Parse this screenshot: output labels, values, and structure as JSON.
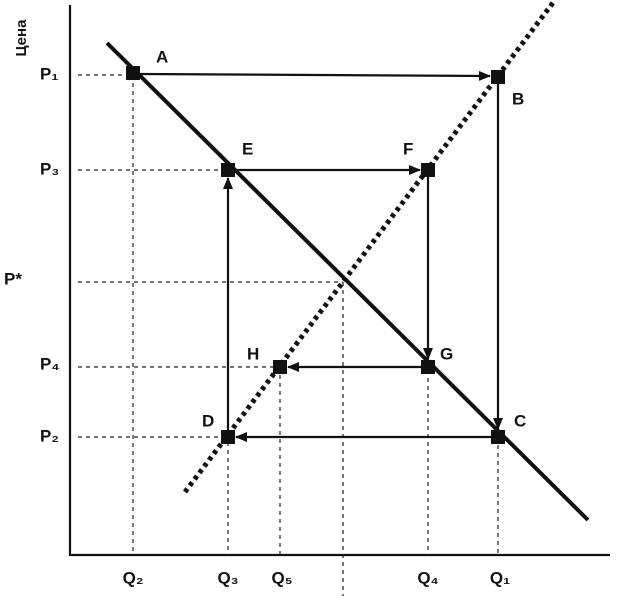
{
  "axis_label": "Цена",
  "price_labels": [
    "P₁",
    "P₃",
    "P*",
    "P₄",
    "P₂"
  ],
  "quantity_labels": [
    "Q₂",
    "Q₃",
    "Q₅",
    "Q₄",
    "Q₁"
  ],
  "points": [
    "A",
    "B",
    "C",
    "D",
    "E",
    "F",
    "G",
    "H"
  ]
}
